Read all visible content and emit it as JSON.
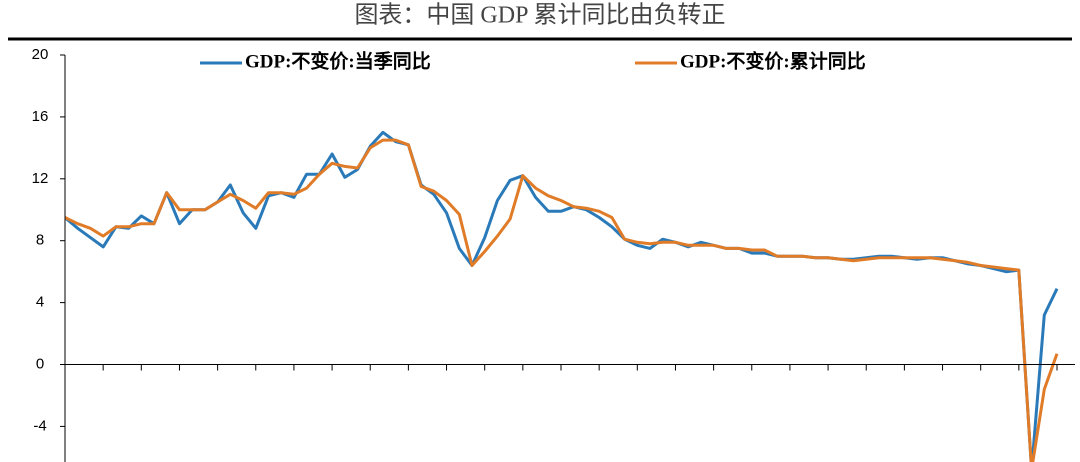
{
  "chart_data": {
    "type": "line",
    "title": "图表：中国 GDP 累计同比由负转正",
    "categories": [
      null,
      null,
      null,
      null,
      null,
      null,
      null,
      null,
      null,
      null,
      null,
      null,
      null,
      null,
      null,
      null,
      null,
      null,
      null,
      null,
      null,
      null,
      null,
      null,
      null,
      null,
      null,
      null,
      null,
      null,
      null,
      null,
      null,
      null,
      null,
      null,
      null,
      null,
      null,
      null,
      null,
      null,
      null,
      null,
      null,
      null,
      null,
      null,
      null,
      null,
      null,
      null,
      null,
      null,
      null,
      null,
      null,
      null,
      null,
      null,
      null,
      null,
      null,
      null,
      null,
      null,
      null,
      null,
      null,
      null,
      null,
      null,
      null,
      null,
      null,
      null,
      null,
      null,
      null
    ],
    "series": [
      {
        "name": "GDP:不变价:当季同比",
        "color": "#2a7ab9",
        "values": [
          9.5,
          8.8,
          8.2,
          7.6,
          8.9,
          8.8,
          9.6,
          9.1,
          11.1,
          9.1,
          10.0,
          10.0,
          10.5,
          11.6,
          9.8,
          8.8,
          10.9,
          11.1,
          10.8,
          12.3,
          12.3,
          13.6,
          12.1,
          12.6,
          14.1,
          15.0,
          14.4,
          14.2,
          11.6,
          11.0,
          9.8,
          7.5,
          6.4,
          8.2,
          10.6,
          11.9,
          12.2,
          10.8,
          9.9,
          9.9,
          10.2,
          10.0,
          9.5,
          8.9,
          8.1,
          7.7,
          7.5,
          8.1,
          7.9,
          7.6,
          7.9,
          7.7,
          7.5,
          7.5,
          7.2,
          7.2,
          7.0,
          7.0,
          7.0,
          6.9,
          6.9,
          6.8,
          6.8,
          6.9,
          7.0,
          7.0,
          6.9,
          6.8,
          6.9,
          6.9,
          6.7,
          6.5,
          6.4,
          6.2,
          6.0,
          6.1,
          -6.8,
          3.2,
          4.9
        ]
      },
      {
        "name": "GDP:不变价:累计同比",
        "color": "#e07b28",
        "values": [
          9.5,
          9.1,
          8.8,
          8.3,
          8.9,
          8.9,
          9.1,
          9.1,
          11.1,
          10.0,
          10.0,
          10.0,
          10.5,
          11.0,
          10.6,
          10.1,
          11.1,
          11.1,
          11.0,
          11.4,
          12.3,
          13.0,
          12.8,
          12.7,
          14.0,
          14.5,
          14.5,
          14.2,
          11.5,
          11.2,
          10.6,
          9.7,
          6.4,
          7.3,
          8.3,
          9.4,
          12.2,
          11.4,
          10.9,
          10.6,
          10.2,
          10.1,
          9.9,
          9.5,
          8.1,
          7.9,
          7.8,
          7.9,
          7.9,
          7.7,
          7.7,
          7.7,
          7.5,
          7.5,
          7.4,
          7.4,
          7.0,
          7.0,
          7.0,
          6.9,
          6.9,
          6.8,
          6.7,
          6.8,
          6.9,
          6.9,
          6.9,
          6.9,
          6.9,
          6.8,
          6.7,
          6.6,
          6.4,
          6.3,
          6.2,
          6.1,
          -6.8,
          -1.6,
          0.7
        ]
      }
    ],
    "ylim": [
      -6.3,
      20
    ],
    "yticks": [
      -4,
      0,
      4,
      8,
      12,
      16,
      20
    ]
  }
}
